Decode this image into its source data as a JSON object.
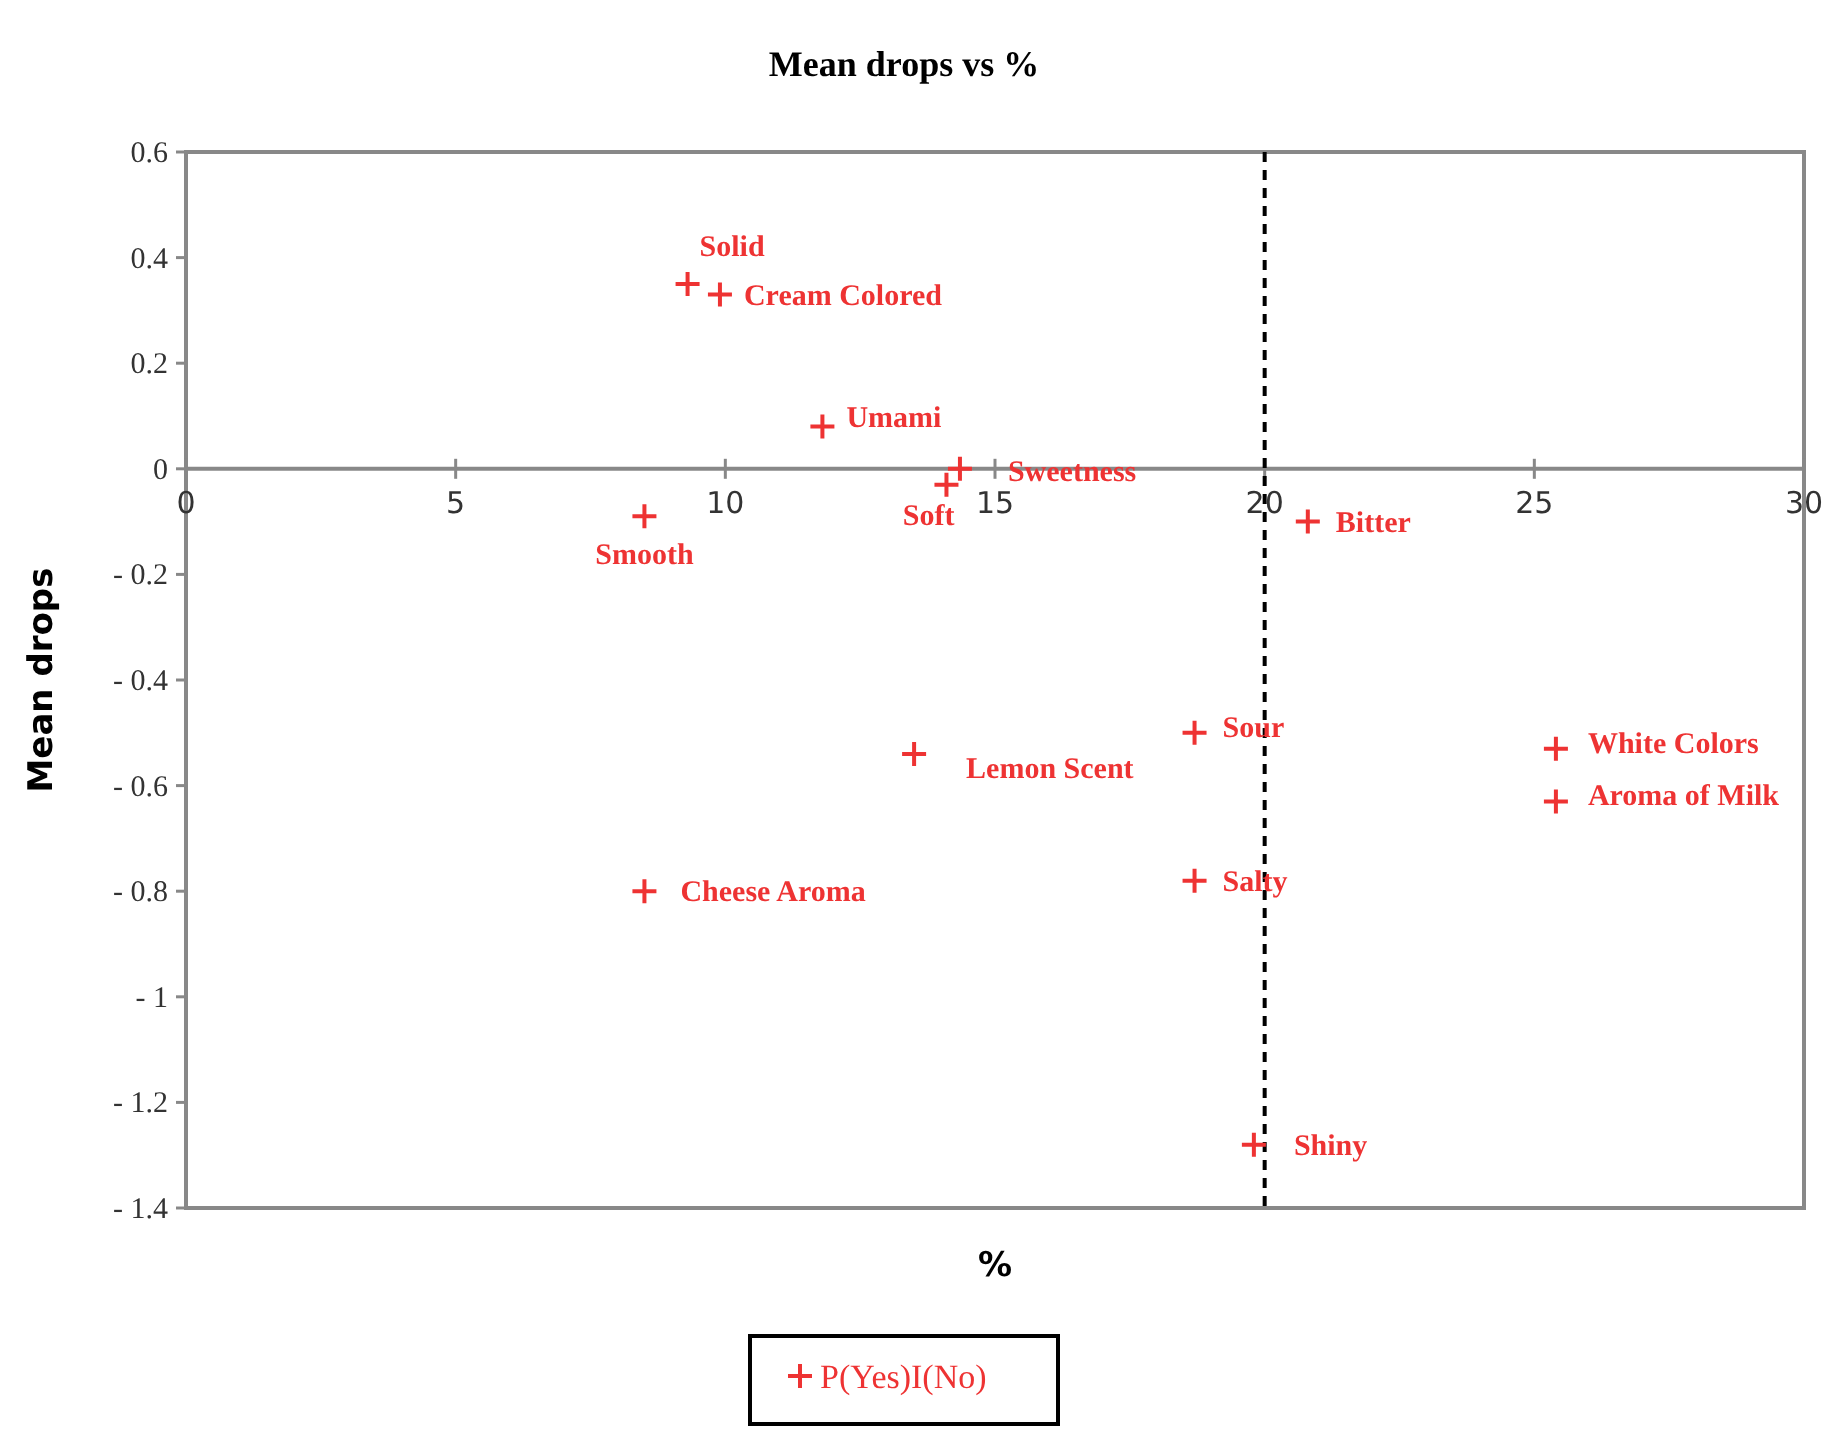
{
  "chart_data": {
    "type": "scatter",
    "title": "Mean drops vs %",
    "xlabel": "%",
    "ylabel": "Mean drops",
    "xlim": [
      0,
      30
    ],
    "xticks": [
      0,
      5,
      10,
      15,
      20,
      25,
      30
    ],
    "ylim": [
      -1.4,
      0.6
    ],
    "yticks": [
      0.6,
      0.4,
      0.2,
      0,
      {
        "value": -0.2,
        "label": "- 0.2"
      },
      {
        "value": -0.4,
        "label": "- 0.4"
      },
      {
        "value": -0.6,
        "label": "- 0.6"
      },
      {
        "value": -0.8,
        "label": "- 0.8"
      },
      {
        "value": -1,
        "label": "- 1"
      },
      {
        "value": -1.2,
        "label": "- 1.2"
      },
      {
        "value": -1.4,
        "label": "- 1.4"
      }
    ],
    "series": [
      {
        "name": "P(Yes)I(No)",
        "color": "#ee3333",
        "x": [
          9.3,
          9.9,
          11.8,
          14.35,
          14.1,
          8.5,
          20.8,
          18.7,
          13.5,
          25.4,
          25.4,
          18.7,
          8.5,
          19.8
        ],
        "values": [
          0.35,
          0.33,
          0.08,
          0.0,
          -0.03,
          -0.09,
          -0.1,
          -0.5,
          -0.54,
          -0.53,
          -0.63,
          -0.78,
          -0.8,
          -1.28
        ]
      }
    ],
    "marker": "cross",
    "grid": false,
    "legend": "bottom",
    "ref_lines": [
      {
        "axis": "x",
        "value": 20,
        "color": "#000000",
        "line_style": "dashed"
      }
    ],
    "annotations": [
      {
        "text": "Solid",
        "x": 9.3,
        "y": 0.35
      },
      {
        "text": "Cream Colored",
        "x": 9.9,
        "y": 0.33
      },
      {
        "text": "Umami",
        "x": 11.8,
        "y": 0.08
      },
      {
        "text": "Sweetness",
        "x": 14.35,
        "y": 0.0
      },
      {
        "text": "Soft",
        "x": 14.1,
        "y": -0.03
      },
      {
        "text": "Smooth",
        "x": 8.5,
        "y": -0.09
      },
      {
        "text": "Bitter",
        "x": 20.8,
        "y": -0.1
      },
      {
        "text": "Sour",
        "x": 18.7,
        "y": -0.5
      },
      {
        "text": "Lemon Scent",
        "x": 13.5,
        "y": -0.54
      },
      {
        "text": "White Colors",
        "x": 25.4,
        "y": -0.53
      },
      {
        "text": "Aroma of Milk",
        "x": 25.4,
        "y": -0.63
      },
      {
        "text": "Salty",
        "x": 18.7,
        "y": -0.78
      },
      {
        "text": "Cheese Aroma",
        "x": 8.5,
        "y": -0.8
      },
      {
        "text": "Shiny",
        "x": 19.8,
        "y": -1.28
      }
    ]
  }
}
